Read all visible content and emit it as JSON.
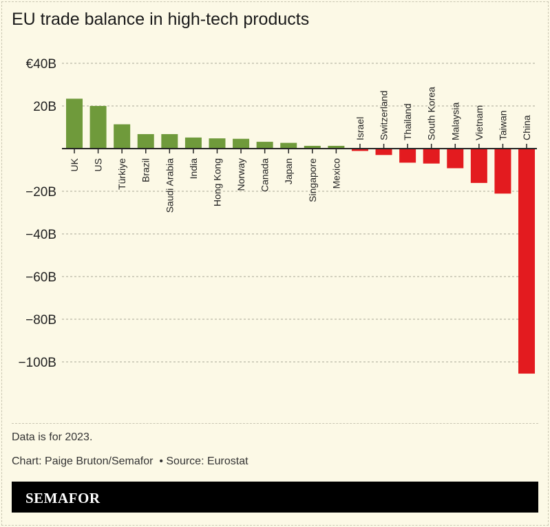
{
  "title": "EU trade balance in high-tech products",
  "note": "Data is for 2023.",
  "credit": "Chart: Paige Bruton/Semafor  • Source: Eurostat",
  "brand": "SEMAFOR",
  "chart_data": {
    "type": "bar",
    "title": "EU trade balance in high-tech products",
    "categories": [
      "UK",
      "US",
      "Türkiye",
      "Brazil",
      "Saudi Arabia",
      "India",
      "Hong Kong",
      "Norway",
      "Canada",
      "Japan",
      "Singapore",
      "Mexico",
      "Israel",
      "Switzerland",
      "Thailand",
      "South Korea",
      "Malaysia",
      "Vietnam",
      "Taiwan",
      "China"
    ],
    "values": [
      23.4,
      20.0,
      11.4,
      6.8,
      6.8,
      5.2,
      4.8,
      4.6,
      3.2,
      2.7,
      1.3,
      1.3,
      -1.1,
      -3.0,
      -6.6,
      -7.0,
      -9.2,
      -16.1,
      -21.1,
      -105.5
    ],
    "yticks": [
      40,
      20,
      0,
      -20,
      -40,
      -60,
      -80,
      -100
    ],
    "ytick_labels": [
      "€40B",
      "20B",
      "",
      "−20B",
      "−40B",
      "−60B",
      "−80B",
      "−100B"
    ],
    "ylim": [
      -110,
      45
    ],
    "grid": true,
    "colors": {
      "positive": "#6f9a3b",
      "negative": "#e31b1f"
    }
  }
}
